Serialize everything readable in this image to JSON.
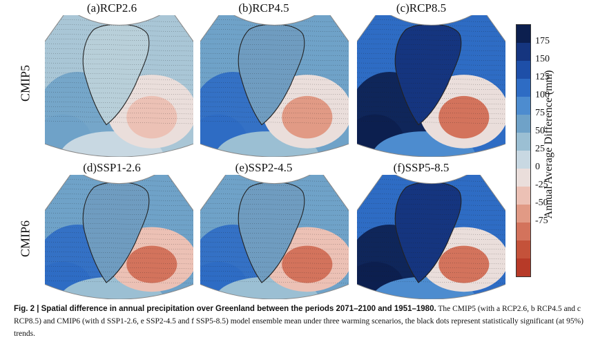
{
  "panels": [
    {
      "title": "(a)RCP2.6",
      "scheme": "light"
    },
    {
      "title": "(b)RCP4.5",
      "scheme": "mid"
    },
    {
      "title": "(c)RCP8.5",
      "scheme": "dark"
    },
    {
      "title": "(d)SSP1-2.6",
      "scheme": "mid-red"
    },
    {
      "title": "(e)SSP2-4.5",
      "scheme": "mid-red"
    },
    {
      "title": "(f)SSP5-8.5",
      "scheme": "dark"
    }
  ],
  "rows": {
    "row1": "CMIP5",
    "row2": "CMIP6"
  },
  "colorbar": {
    "label": "Annual Average Difference (mm)",
    "ticks": [
      "175",
      "150",
      "125",
      "100",
      "75",
      "50",
      "25",
      "0",
      "-25",
      "-50",
      "-75"
    ],
    "colors": [
      "#0c1f4f",
      "#15357f",
      "#1e4fa8",
      "#2e6cc4",
      "#4d8ccf",
      "#6fa2c8",
      "#9bbfd3",
      "#c8d8e2",
      "#eadedb",
      "#ecc1b5",
      "#e19a85",
      "#d3735c",
      "#c4523a",
      "#b73a28"
    ]
  },
  "caption": {
    "bold": "Fig. 2 | Spatial difference in annual precipitation over Greenland between the periods 2071–2100 and 1951–1980.",
    "text": " The CMIP5 (with a RCP2.6, b RCP4.5 and c RCP8.5) and CMIP6 (with d SSP1-2.6, e SSP2-4.5 and f SSP5-8.5) model ensemble mean under three warming scenarios, the black dots represent statistically significant (at 95%) trends."
  }
}
